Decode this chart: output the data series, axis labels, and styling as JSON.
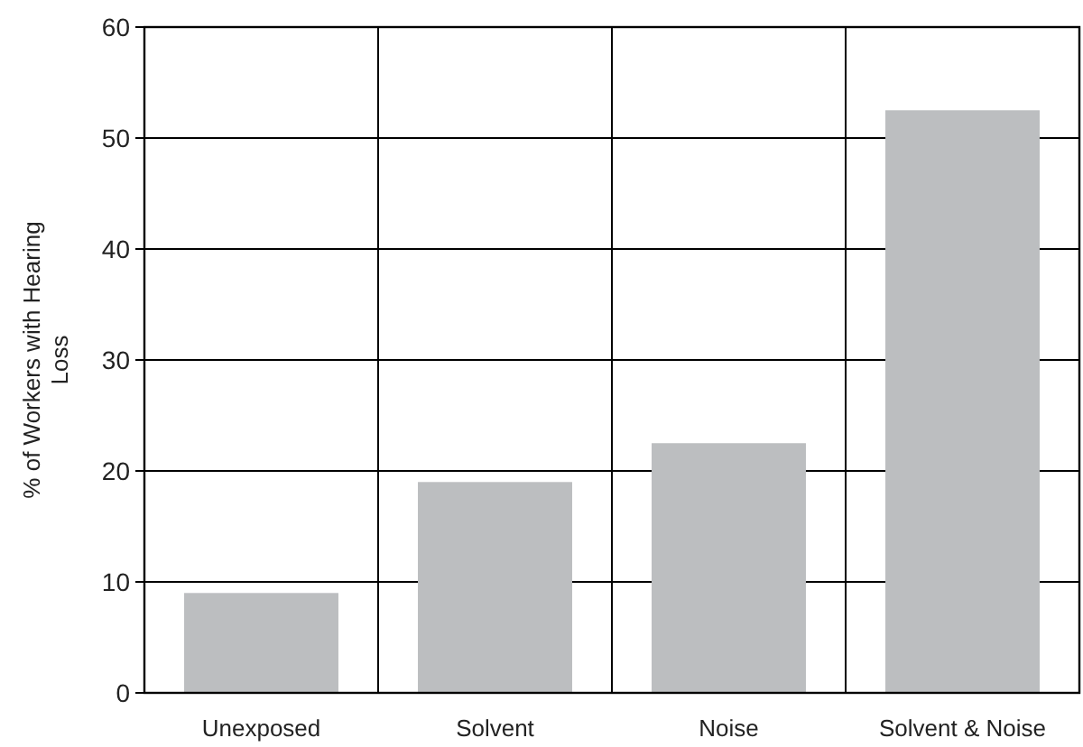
{
  "chart_data": {
    "type": "bar",
    "ylabel": "% of Workers with Hearing Loss",
    "categories": [
      "Unexposed",
      "Solvent",
      "Noise",
      "Solvent & Noise"
    ],
    "values": [
      9,
      19,
      22.5,
      52.5
    ],
    "color": "#bcbec0",
    "ylim": [
      0,
      60
    ],
    "yticks": [
      0,
      10,
      20,
      30,
      40,
      50,
      60
    ],
    "grid": true
  }
}
